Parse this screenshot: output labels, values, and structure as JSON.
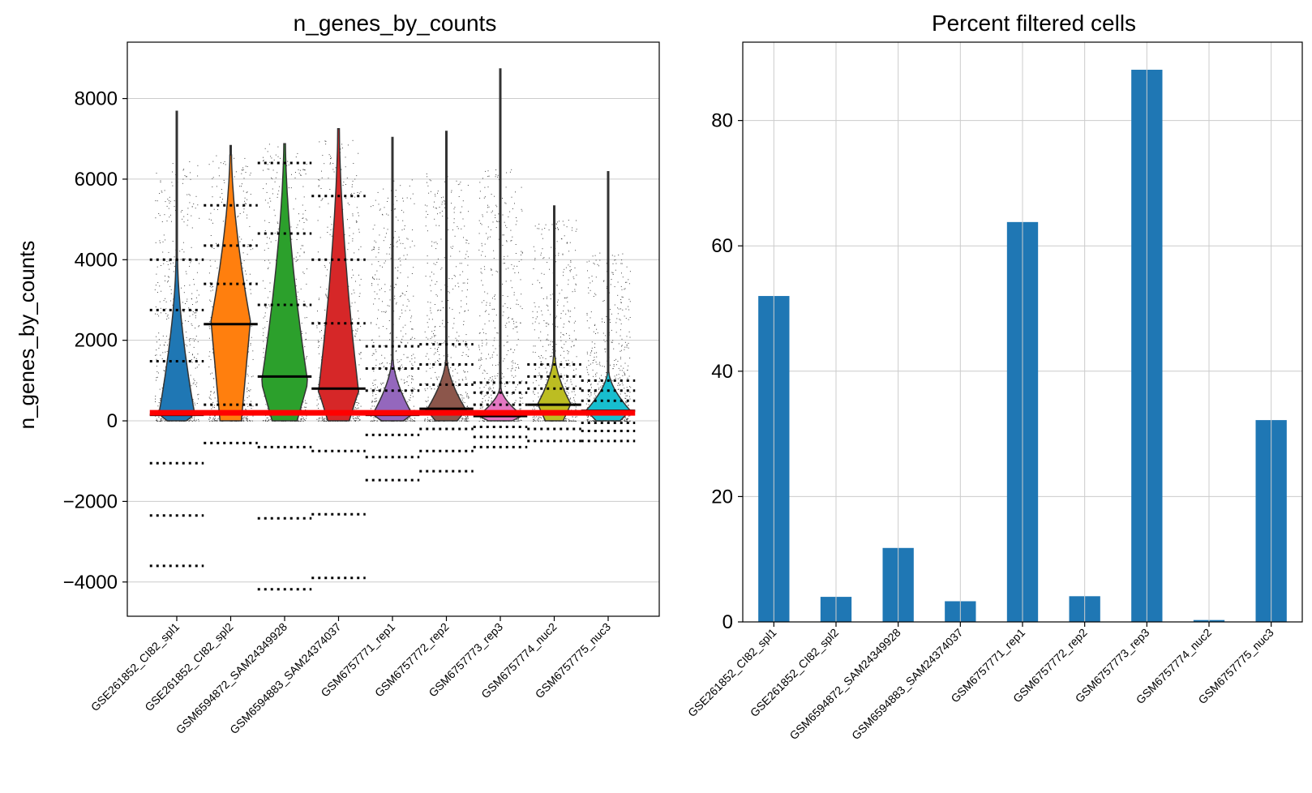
{
  "chart_data": [
    {
      "type": "violin",
      "title": "n_genes_by_counts",
      "ylabel": "n_genes_by_counts",
      "xlabel": "",
      "ylim": [
        -4850,
        9400
      ],
      "yticks": [
        -4000,
        -2000,
        0,
        2000,
        4000,
        6000,
        8000
      ],
      "ytick_labels": [
        "−4000",
        "−2000",
        "0",
        "2000",
        "4000",
        "6000",
        "8000"
      ],
      "grid": "y",
      "threshold_line": {
        "value": 200,
        "color": "#ff0000"
      },
      "categories": [
        "GSE261852_CI82_spl1",
        "GSE261852_CI82_spl2",
        "GSM6594872_SAM24349928",
        "GSM6594883_SAM24374037",
        "GSM6757771_rep1",
        "GSM6757772_rep2",
        "GSM6757773_rep3",
        "GSM6757774_nuc2",
        "GSM6757775_nuc3"
      ],
      "colors": [
        "#1f77b4",
        "#ff7f0e",
        "#2ca02c",
        "#d62728",
        "#9467bd",
        "#8c564b",
        "#e377c2",
        "#bcbd22",
        "#17becf"
      ],
      "series": [
        {
          "max": 7700,
          "median": 150,
          "violin_top": 4000,
          "violin_peak": 150,
          "violin_width": 0.32,
          "jitter_top": 6500,
          "dotted_lines": [
            4000,
            2750,
            1480,
            -1050,
            -2350,
            -3600
          ]
        },
        {
          "max": 6850,
          "median": 2400,
          "violin_top": 6600,
          "violin_peak": 2400,
          "violin_width": 0.36,
          "jitter_top": 6600,
          "dotted_lines": [
            5350,
            4350,
            3400,
            400,
            -550
          ]
        },
        {
          "max": 6880,
          "median": 1100,
          "violin_top": 6880,
          "violin_peak": 900,
          "violin_width": 0.42,
          "jitter_top": 6880,
          "dotted_lines": [
            6400,
            4650,
            2880,
            -650,
            -2420,
            -4180
          ]
        },
        {
          "max": 7250,
          "median": 800,
          "violin_top": 7250,
          "violin_peak": 700,
          "violin_width": 0.36,
          "jitter_top": 7000,
          "dotted_lines": [
            5580,
            4000,
            2420,
            -750,
            -2320,
            -3900
          ]
        },
        {
          "max": 7050,
          "median": 150,
          "violin_top": 1500,
          "violin_peak": 150,
          "violin_width": 0.36,
          "jitter_top": 6000,
          "dotted_lines": [
            1850,
            1300,
            750,
            -350,
            -900,
            -1470
          ]
        },
        {
          "max": 7200,
          "median": 300,
          "violin_top": 1500,
          "violin_peak": 250,
          "violin_width": 0.36,
          "jitter_top": 6200,
          "dotted_lines": [
            1900,
            1400,
            900,
            -200,
            -750,
            -1250
          ]
        },
        {
          "max": 8750,
          "median": 120,
          "violin_top": 800,
          "violin_peak": 120,
          "violin_width": 0.4,
          "jitter_top": 6400,
          "dotted_lines": [
            950,
            700,
            400,
            -150,
            -400,
            -650
          ]
        },
        {
          "max": 5350,
          "median": 400,
          "violin_top": 1600,
          "violin_peak": 400,
          "violin_width": 0.3,
          "jitter_top": 5000,
          "dotted_lines": [
            1400,
            1100,
            800,
            -200,
            -500
          ]
        },
        {
          "max": 6200,
          "median": 250,
          "violin_top": 1200,
          "violin_peak": 250,
          "violin_width": 0.4,
          "jitter_top": 4200,
          "dotted_lines": [
            1000,
            750,
            500,
            -50,
            -250,
            -500
          ]
        }
      ]
    },
    {
      "type": "bar",
      "title": "Percent filtered cells",
      "xlabel": "",
      "ylabel": "",
      "ylim": [
        0,
        92.5
      ],
      "yticks": [
        0,
        20,
        40,
        60,
        80
      ],
      "ytick_labels": [
        "0",
        "20",
        "40",
        "60",
        "80"
      ],
      "grid": "both",
      "color": "#1f77b4",
      "categories": [
        "GSE261852_CI82_spl1",
        "GSE261852_CI82_spl2",
        "GSM6594872_SAM24349928",
        "GSM6594883_SAM24374037",
        "GSM6757771_rep1",
        "GSM6757772_rep2",
        "GSM6757773_rep3",
        "GSM6757774_nuc2",
        "GSM6757775_nuc3"
      ],
      "values": [
        52.0,
        4.0,
        11.8,
        3.3,
        63.8,
        4.1,
        88.1,
        0.3,
        32.2
      ]
    }
  ]
}
